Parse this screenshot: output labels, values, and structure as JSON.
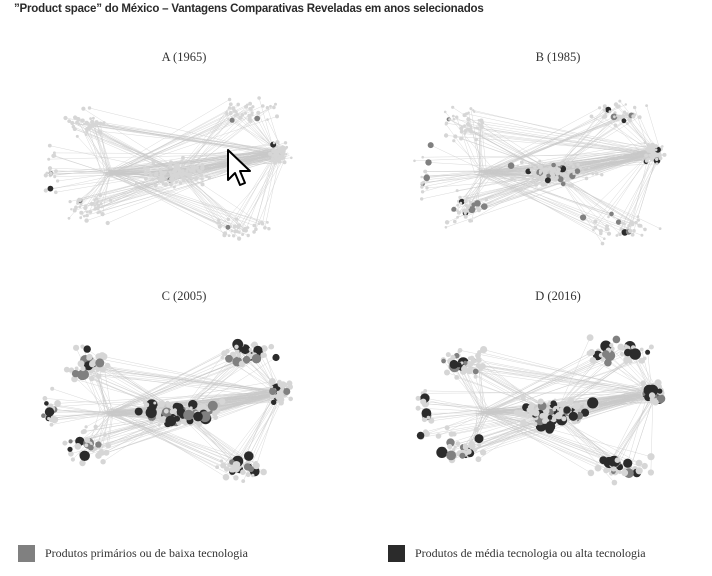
{
  "title": "”Product space” do México – Vantagens Comparativas Reveladas em anos selecionados",
  "colors": {
    "background_node": "#d6d6d6",
    "edge": "#c8c8c8",
    "primary_low_tech": "#808080",
    "medium_high_tech": "#2b2b2b"
  },
  "chart_data": [
    {
      "type": "network",
      "panel": "A",
      "title": "A (1965)",
      "share_low_tech_highlighted": 0.03,
      "share_med_high_tech_highlighted": 0.01
    },
    {
      "type": "network",
      "panel": "B",
      "title": "B (1985)",
      "share_low_tech_highlighted": 0.07,
      "share_med_high_tech_highlighted": 0.05
    },
    {
      "type": "network",
      "panel": "C",
      "title": "C (2005)",
      "share_low_tech_highlighted": 0.12,
      "share_med_high_tech_highlighted": 0.14
    },
    {
      "type": "network",
      "panel": "D",
      "title": "D (2016)",
      "share_low_tech_highlighted": 0.11,
      "share_med_high_tech_highlighted": 0.16
    }
  ],
  "legend": [
    {
      "label": "Produtos primários ou de baixa tecnologia",
      "color": "#808080"
    },
    {
      "label": "Produtos de média tecnologia ou alta tecnologia",
      "color": "#2b2b2b"
    }
  ],
  "cursor_icon": "arrow-pointer"
}
